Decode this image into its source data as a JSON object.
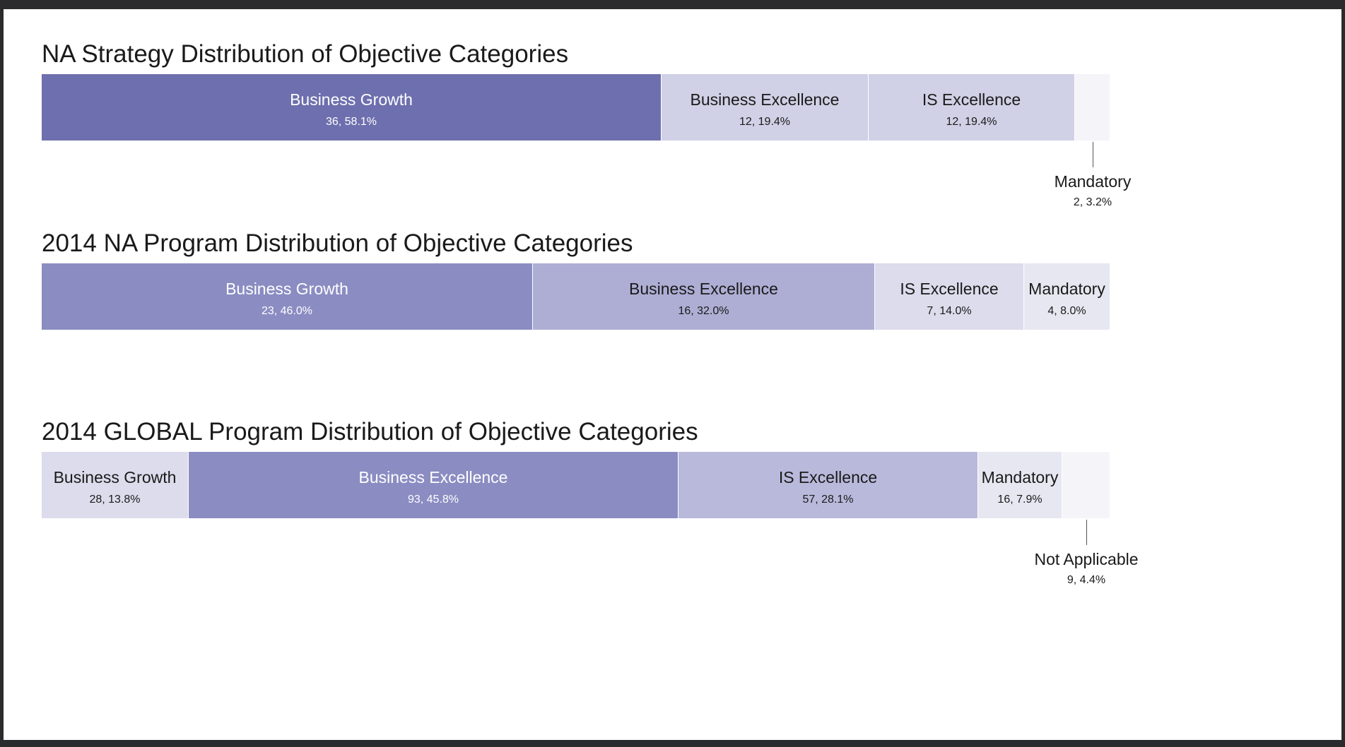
{
  "chart_data": [
    {
      "type": "bar",
      "title": "NA Strategy Distribution of Objective Categories",
      "total": 62,
      "segments": [
        {
          "name": "Business Growth",
          "value": 36,
          "label": "36, 58.1%",
          "color": "#6e6fae",
          "text_color": "#ffffff"
        },
        {
          "name": "Business Excellence",
          "value": 12,
          "label": "12, 19.4%",
          "color": "#d0d0e6",
          "text_color": "#1a1a1a"
        },
        {
          "name": "IS Excellence",
          "value": 12,
          "label": "12, 19.4%",
          "color": "#d0d0e6",
          "text_color": "#1a1a1a"
        },
        {
          "name": "Mandatory",
          "value": 2,
          "label": "2, 3.2%",
          "color": "#f4f4f9",
          "text_color": "#1a1a1a",
          "callout": true
        }
      ]
    },
    {
      "type": "bar",
      "title": "2014 NA Program Distribution of Objective Categories",
      "total": 50,
      "segments": [
        {
          "name": "Business Growth",
          "value": 23,
          "label": "23, 46.0%",
          "color": "#8b8cc2",
          "text_color": "#ffffff"
        },
        {
          "name": "Business Excellence",
          "value": 16,
          "label": "16, 32.0%",
          "color": "#aeaed5",
          "text_color": "#1a1a1a"
        },
        {
          "name": "IS Excellence",
          "value": 7,
          "label": "7, 14.0%",
          "color": "#dcdcec",
          "text_color": "#1a1a1a"
        },
        {
          "name": "Mandatory",
          "value": 4,
          "label": "4, 8.0%",
          "color": "#e7e7f1",
          "text_color": "#1a1a1a"
        }
      ]
    },
    {
      "type": "bar",
      "title": "2014 GLOBAL Program Distribution of Objective Categories",
      "total": 203,
      "segments": [
        {
          "name": "Business Growth",
          "value": 28,
          "label": "28, 13.8%",
          "color": "#dcdcec",
          "text_color": "#1a1a1a"
        },
        {
          "name": "Business Excellence",
          "value": 93,
          "label": "93, 45.8%",
          "color": "#8b8cc2",
          "text_color": "#ffffff"
        },
        {
          "name": "IS Excellence",
          "value": 57,
          "label": "57, 28.1%",
          "color": "#b9b9dc",
          "text_color": "#1a1a1a"
        },
        {
          "name": "Mandatory",
          "value": 16,
          "label": "16, 7.9%",
          "color": "#e7e7f1",
          "text_color": "#1a1a1a"
        },
        {
          "name": "Not Applicable",
          "value": 9,
          "label": "9, 4.4%",
          "color": "#f4f4f9",
          "text_color": "#1a1a1a",
          "callout": true
        }
      ]
    }
  ]
}
